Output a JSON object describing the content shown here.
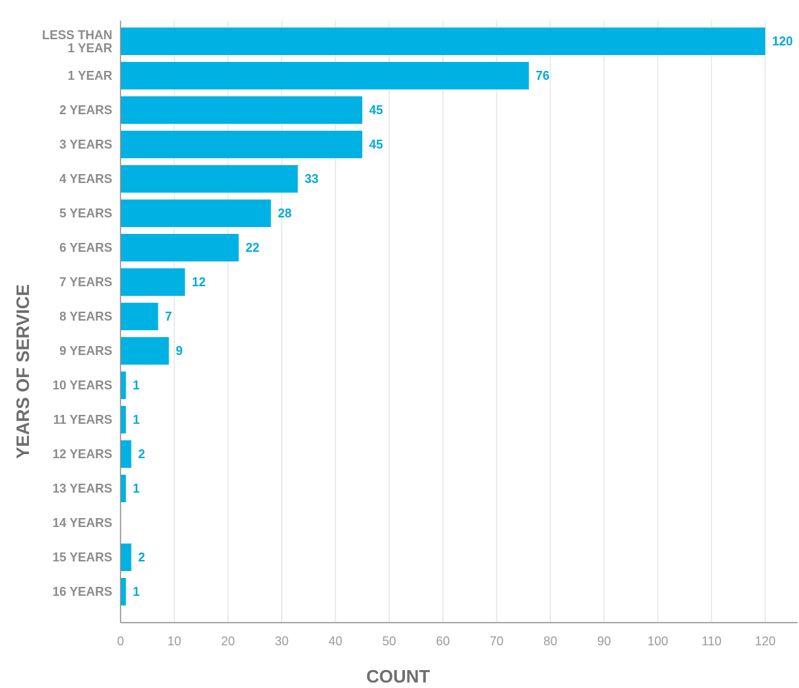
{
  "chart_data": {
    "type": "bar",
    "orientation": "horizontal",
    "categories": [
      "LESS THAN 1 YEAR",
      "1 YEAR",
      "2 YEARS",
      "3 YEARS",
      "4 YEARS",
      "5 YEARS",
      "6 YEARS",
      "7 YEARS",
      "8 YEARS",
      "9 YEARS",
      "10 YEARS",
      "11 YEARS",
      "12 YEARS",
      "13 YEARS",
      "14 YEARS",
      "15 YEARS",
      "16 YEARS"
    ],
    "category_label_lines": [
      [
        "LESS THAN",
        "1 YEAR"
      ],
      [
        "1 YEAR"
      ],
      [
        "2 YEARS"
      ],
      [
        "3 YEARS"
      ],
      [
        "4 YEARS"
      ],
      [
        "5 YEARS"
      ],
      [
        "6 YEARS"
      ],
      [
        "7 YEARS"
      ],
      [
        "8 YEARS"
      ],
      [
        "9 YEARS"
      ],
      [
        "10 YEARS"
      ],
      [
        "11 YEARS"
      ],
      [
        "12 YEARS"
      ],
      [
        "13 YEARS"
      ],
      [
        "14 YEARS"
      ],
      [
        "15 YEARS"
      ],
      [
        "16 YEARS"
      ]
    ],
    "values": [
      120,
      76,
      45,
      45,
      33,
      28,
      22,
      12,
      7,
      9,
      1,
      1,
      2,
      1,
      null,
      2,
      1
    ],
    "value_labels": [
      "120",
      "76",
      "45",
      "45",
      "33",
      "28",
      "22",
      "12",
      "7",
      "9",
      "1",
      "1",
      "2",
      "1",
      "",
      "2",
      "1"
    ],
    "xlabel": "COUNT",
    "ylabel": "YEARS OF SERVICE",
    "xlim": [
      0,
      126
    ],
    "xticks": [
      0,
      10,
      20,
      30,
      40,
      50,
      60,
      70,
      80,
      90,
      100,
      110,
      120
    ],
    "grid": true,
    "legend": "none"
  },
  "colors": {
    "bar": "#00b2e3",
    "value_label": "#00a9dc",
    "gridline": "#e6e6e6",
    "axis": "#8c8c8c",
    "category_label": "#8c8c8c",
    "tick_label": "#9a9a9a",
    "axis_title": "#6e6e6e"
  }
}
